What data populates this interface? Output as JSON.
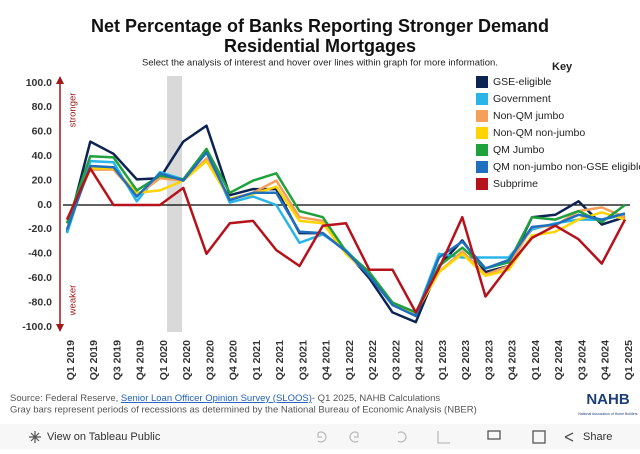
{
  "chart_data": {
    "type": "line",
    "title": "Net Percentage of Banks Reporting Stronger Demand",
    "title_line2": "Residential Mortgages",
    "subtitle": "Select the analysis of interest and hover over lines within graph for more information.",
    "legend_title": "Key",
    "y_label_top": "stronger",
    "y_label_bottom": "weaker",
    "categories": [
      "Q1 2019",
      "Q2 2019",
      "Q3 2019",
      "Q4 2019",
      "Q1 2020",
      "Q2 2020",
      "Q3 2020",
      "Q4 2020",
      "Q1 2021",
      "Q2 2021",
      "Q3 2021",
      "Q4 2021",
      "Q1 2022",
      "Q2 2022",
      "Q3 2022",
      "Q4 2022",
      "Q1 2023",
      "Q2 2023",
      "Q3 2023",
      "Q4 2023",
      "Q1 2024",
      "Q2 2024",
      "Q3 2024",
      "Q4 2024",
      "Q1 2025"
    ],
    "series": [
      {
        "name": "GSE-eligible",
        "color": "#0d2452",
        "values": [
          -22,
          52,
          42,
          21,
          22,
          52,
          65,
          8,
          13,
          13,
          -23,
          -23,
          -38,
          -60,
          -88,
          -96,
          -50,
          -29,
          -55,
          -50,
          -10,
          -8,
          3,
          -16,
          -10
        ]
      },
      {
        "name": "Government",
        "color": "#2ab5e8",
        "values": [
          -23,
          36,
          35,
          3,
          27,
          21,
          44,
          2,
          7,
          0,
          -31,
          -24,
          -37,
          -57,
          -80,
          -90,
          -40,
          -43,
          -43,
          -43,
          -20,
          -15,
          -12,
          -12,
          -8
        ]
      },
      {
        "name": "Non-QM jumbo",
        "color": "#f5a05a",
        "values": [
          -12,
          29,
          29,
          8,
          22,
          20,
          38,
          5,
          10,
          20,
          -10,
          -13,
          -40,
          -57,
          -80,
          -88,
          -55,
          -38,
          -57,
          -50,
          -18,
          -17,
          -5,
          -2,
          -10
        ]
      },
      {
        "name": "Non-QM non-jumbo",
        "color": "#ffd400",
        "values": [
          -15,
          30,
          30,
          10,
          12,
          20,
          36,
          5,
          9,
          15,
          -13,
          -15,
          -40,
          -57,
          -82,
          -88,
          -55,
          -40,
          -58,
          -53,
          -25,
          -22,
          -12,
          -6,
          -12
        ]
      },
      {
        "name": "QM Jumbo",
        "color": "#1fa13c",
        "values": [
          -15,
          40,
          39,
          12,
          24,
          21,
          46,
          10,
          20,
          26,
          -5,
          -10,
          -38,
          -55,
          -80,
          -88,
          -50,
          -35,
          -52,
          -47,
          -10,
          -12,
          -5,
          -14,
          0
        ]
      },
      {
        "name": "QM non-jumbo non-GSE eligible",
        "color": "#1f6fbf",
        "values": [
          -20,
          32,
          31,
          7,
          26,
          20,
          43,
          4,
          10,
          10,
          -22,
          -23,
          -38,
          -58,
          -82,
          -91,
          -43,
          -30,
          -52,
          -45,
          -18,
          -16,
          -8,
          -12,
          -7
        ]
      },
      {
        "name": "Subprime",
        "color": "#b5121b",
        "values": [
          -12,
          30,
          0,
          0,
          0,
          14,
          -40,
          -15,
          -13,
          -37,
          -50,
          -17,
          -15,
          -53,
          -53,
          -88,
          -52,
          -10,
          -75,
          -50,
          -27,
          -17,
          -28,
          -48,
          -12
        ]
      }
    ],
    "ylim": [
      -100,
      100
    ],
    "yticks": [
      {
        "value": 100,
        "label": "100.0"
      },
      {
        "value": 80,
        "label": "80.0"
      },
      {
        "value": 60,
        "label": "60.0"
      },
      {
        "value": 40,
        "label": "40.0"
      },
      {
        "value": 20,
        "label": "20.0"
      },
      {
        "value": 0,
        "label": "0.0"
      },
      {
        "value": -20,
        "label": "-20.0"
      },
      {
        "value": -40,
        "label": "-40.0"
      },
      {
        "value": -60,
        "label": "-60.0"
      },
      {
        "value": -80,
        "label": "-80.0"
      },
      {
        "value": -100,
        "label": "-100.0"
      }
    ],
    "zero_line": true,
    "source": {
      "prefix": "Source: Federal Reserve, ",
      "link": "Senior Loan Officer Opinion Survey (SLOOS)",
      "suffix": "- Q1 2025, NAHB Calculations"
    },
    "note": "Gray bars represent periods of recessions as determined by the National Bureau of Economic Analysis (NBER)",
    "logo": "NAHB",
    "logo_sub": "National Association of Home Builders",
    "footer_left": "View on Tableau Public",
    "footer_right": "Share"
  }
}
